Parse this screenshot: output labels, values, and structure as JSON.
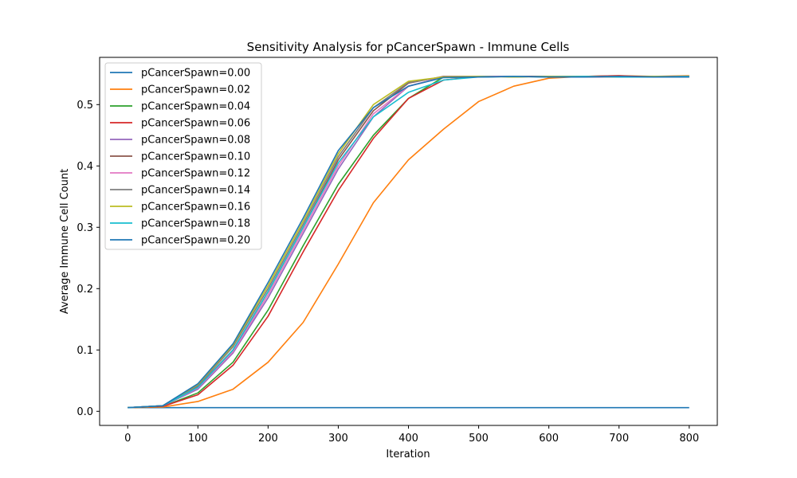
{
  "chart_data": {
    "type": "line",
    "title": "Sensitivity Analysis for pCancerSpawn - Immune Cells",
    "xlabel": "Iteration",
    "ylabel": "Average Immune Cell Count",
    "xlim": [
      -40,
      840
    ],
    "ylim": [
      -0.023,
      0.577
    ],
    "xticks": [
      0,
      100,
      200,
      300,
      400,
      500,
      600,
      700,
      800
    ],
    "yticks": [
      0.0,
      0.1,
      0.2,
      0.3,
      0.4,
      0.5
    ],
    "ytick_labels": [
      "0.0",
      "0.1",
      "0.2",
      "0.3",
      "0.4",
      "0.5"
    ],
    "grid": false,
    "legend_position": "upper-left",
    "series": [
      {
        "name": "pCancerSpawn=0.00",
        "color": "#1f77b4",
        "points": [
          [
            0,
            0.006
          ],
          [
            100,
            0.006
          ],
          [
            200,
            0.006
          ],
          [
            300,
            0.006
          ],
          [
            400,
            0.006
          ],
          [
            500,
            0.006
          ],
          [
            600,
            0.006
          ],
          [
            700,
            0.006
          ],
          [
            800,
            0.006
          ]
        ]
      },
      {
        "name": "pCancerSpawn=0.02",
        "color": "#ff7f0e",
        "points": [
          [
            0,
            0.006
          ],
          [
            50,
            0.007
          ],
          [
            100,
            0.016
          ],
          [
            150,
            0.036
          ],
          [
            200,
            0.08
          ],
          [
            250,
            0.145
          ],
          [
            300,
            0.24
          ],
          [
            350,
            0.34
          ],
          [
            400,
            0.41
          ],
          [
            450,
            0.46
          ],
          [
            500,
            0.505
          ],
          [
            550,
            0.53
          ],
          [
            600,
            0.543
          ],
          [
            650,
            0.546
          ],
          [
            700,
            0.547
          ],
          [
            750,
            0.546
          ],
          [
            800,
            0.547
          ]
        ]
      },
      {
        "name": "pCancerSpawn=0.04",
        "color": "#2ca02c",
        "points": [
          [
            0,
            0.006
          ],
          [
            50,
            0.008
          ],
          [
            100,
            0.03
          ],
          [
            150,
            0.08
          ],
          [
            200,
            0.165
          ],
          [
            250,
            0.27
          ],
          [
            300,
            0.37
          ],
          [
            350,
            0.45
          ],
          [
            400,
            0.51
          ],
          [
            450,
            0.545
          ],
          [
            500,
            0.545
          ],
          [
            550,
            0.546
          ],
          [
            600,
            0.545
          ],
          [
            650,
            0.545
          ],
          [
            700,
            0.546
          ],
          [
            750,
            0.545
          ],
          [
            800,
            0.546
          ]
        ]
      },
      {
        "name": "pCancerSpawn=0.06",
        "color": "#d62728",
        "points": [
          [
            0,
            0.006
          ],
          [
            50,
            0.008
          ],
          [
            100,
            0.027
          ],
          [
            150,
            0.075
          ],
          [
            200,
            0.155
          ],
          [
            250,
            0.26
          ],
          [
            300,
            0.36
          ],
          [
            350,
            0.445
          ],
          [
            400,
            0.51
          ],
          [
            450,
            0.54
          ],
          [
            500,
            0.546
          ],
          [
            550,
            0.546
          ],
          [
            600,
            0.546
          ],
          [
            650,
            0.546
          ],
          [
            700,
            0.547
          ],
          [
            750,
            0.545
          ],
          [
            800,
            0.546
          ]
        ]
      },
      {
        "name": "pCancerSpawn=0.08",
        "color": "#9467bd",
        "points": [
          [
            0,
            0.006
          ],
          [
            50,
            0.009
          ],
          [
            100,
            0.036
          ],
          [
            150,
            0.095
          ],
          [
            200,
            0.185
          ],
          [
            250,
            0.29
          ],
          [
            300,
            0.395
          ],
          [
            350,
            0.48
          ],
          [
            400,
            0.53
          ],
          [
            450,
            0.545
          ],
          [
            500,
            0.545
          ],
          [
            550,
            0.546
          ],
          [
            600,
            0.546
          ],
          [
            650,
            0.545
          ],
          [
            700,
            0.545
          ],
          [
            750,
            0.545
          ],
          [
            800,
            0.546
          ]
        ]
      },
      {
        "name": "pCancerSpawn=0.10",
        "color": "#8c564b",
        "points": [
          [
            0,
            0.006
          ],
          [
            50,
            0.009
          ],
          [
            100,
            0.04
          ],
          [
            150,
            0.1
          ],
          [
            200,
            0.195
          ],
          [
            250,
            0.3
          ],
          [
            300,
            0.41
          ],
          [
            350,
            0.49
          ],
          [
            400,
            0.535
          ],
          [
            450,
            0.546
          ],
          [
            500,
            0.546
          ],
          [
            550,
            0.546
          ],
          [
            600,
            0.546
          ],
          [
            650,
            0.546
          ],
          [
            700,
            0.546
          ],
          [
            750,
            0.546
          ],
          [
            800,
            0.546
          ]
        ]
      },
      {
        "name": "pCancerSpawn=0.12",
        "color": "#e377c2",
        "points": [
          [
            0,
            0.006
          ],
          [
            50,
            0.009
          ],
          [
            100,
            0.038
          ],
          [
            150,
            0.097
          ],
          [
            200,
            0.19
          ],
          [
            250,
            0.295
          ],
          [
            300,
            0.4
          ],
          [
            350,
            0.485
          ],
          [
            400,
            0.53
          ],
          [
            450,
            0.545
          ],
          [
            500,
            0.546
          ],
          [
            550,
            0.546
          ],
          [
            600,
            0.545
          ],
          [
            650,
            0.546
          ],
          [
            700,
            0.545
          ],
          [
            750,
            0.545
          ],
          [
            800,
            0.545
          ]
        ]
      },
      {
        "name": "pCancerSpawn=0.14",
        "color": "#7f7f7f",
        "points": [
          [
            0,
            0.006
          ],
          [
            50,
            0.009
          ],
          [
            100,
            0.042
          ],
          [
            150,
            0.105
          ],
          [
            200,
            0.2
          ],
          [
            250,
            0.305
          ],
          [
            300,
            0.415
          ],
          [
            350,
            0.495
          ],
          [
            400,
            0.536
          ],
          [
            450,
            0.545
          ],
          [
            500,
            0.546
          ],
          [
            550,
            0.545
          ],
          [
            600,
            0.546
          ],
          [
            650,
            0.545
          ],
          [
            700,
            0.546
          ],
          [
            750,
            0.545
          ],
          [
            800,
            0.546
          ]
        ]
      },
      {
        "name": "pCancerSpawn=0.16",
        "color": "#bcbd22",
        "points": [
          [
            0,
            0.006
          ],
          [
            50,
            0.009
          ],
          [
            100,
            0.044
          ],
          [
            150,
            0.108
          ],
          [
            200,
            0.205
          ],
          [
            250,
            0.31
          ],
          [
            300,
            0.42
          ],
          [
            350,
            0.5
          ],
          [
            400,
            0.538
          ],
          [
            450,
            0.545
          ],
          [
            500,
            0.546
          ],
          [
            550,
            0.545
          ],
          [
            600,
            0.546
          ],
          [
            650,
            0.546
          ],
          [
            700,
            0.545
          ],
          [
            750,
            0.546
          ],
          [
            800,
            0.545
          ]
        ]
      },
      {
        "name": "pCancerSpawn=0.18",
        "color": "#17becf",
        "points": [
          [
            0,
            0.006
          ],
          [
            50,
            0.009
          ],
          [
            100,
            0.039
          ],
          [
            150,
            0.1
          ],
          [
            200,
            0.195
          ],
          [
            250,
            0.3
          ],
          [
            300,
            0.405
          ],
          [
            350,
            0.48
          ],
          [
            400,
            0.52
          ],
          [
            450,
            0.54
          ],
          [
            500,
            0.545
          ],
          [
            550,
            0.546
          ],
          [
            600,
            0.545
          ],
          [
            650,
            0.546
          ],
          [
            700,
            0.545
          ],
          [
            750,
            0.545
          ],
          [
            800,
            0.546
          ]
        ]
      },
      {
        "name": "pCancerSpawn=0.20",
        "color": "#1f77b4",
        "points": [
          [
            0,
            0.006
          ],
          [
            50,
            0.009
          ],
          [
            100,
            0.045
          ],
          [
            150,
            0.11
          ],
          [
            200,
            0.21
          ],
          [
            250,
            0.315
          ],
          [
            300,
            0.425
          ],
          [
            350,
            0.495
          ],
          [
            400,
            0.53
          ],
          [
            450,
            0.544
          ],
          [
            500,
            0.545
          ],
          [
            550,
            0.546
          ],
          [
            600,
            0.545
          ],
          [
            650,
            0.545
          ],
          [
            700,
            0.546
          ],
          [
            750,
            0.545
          ],
          [
            800,
            0.545
          ]
        ]
      }
    ]
  }
}
